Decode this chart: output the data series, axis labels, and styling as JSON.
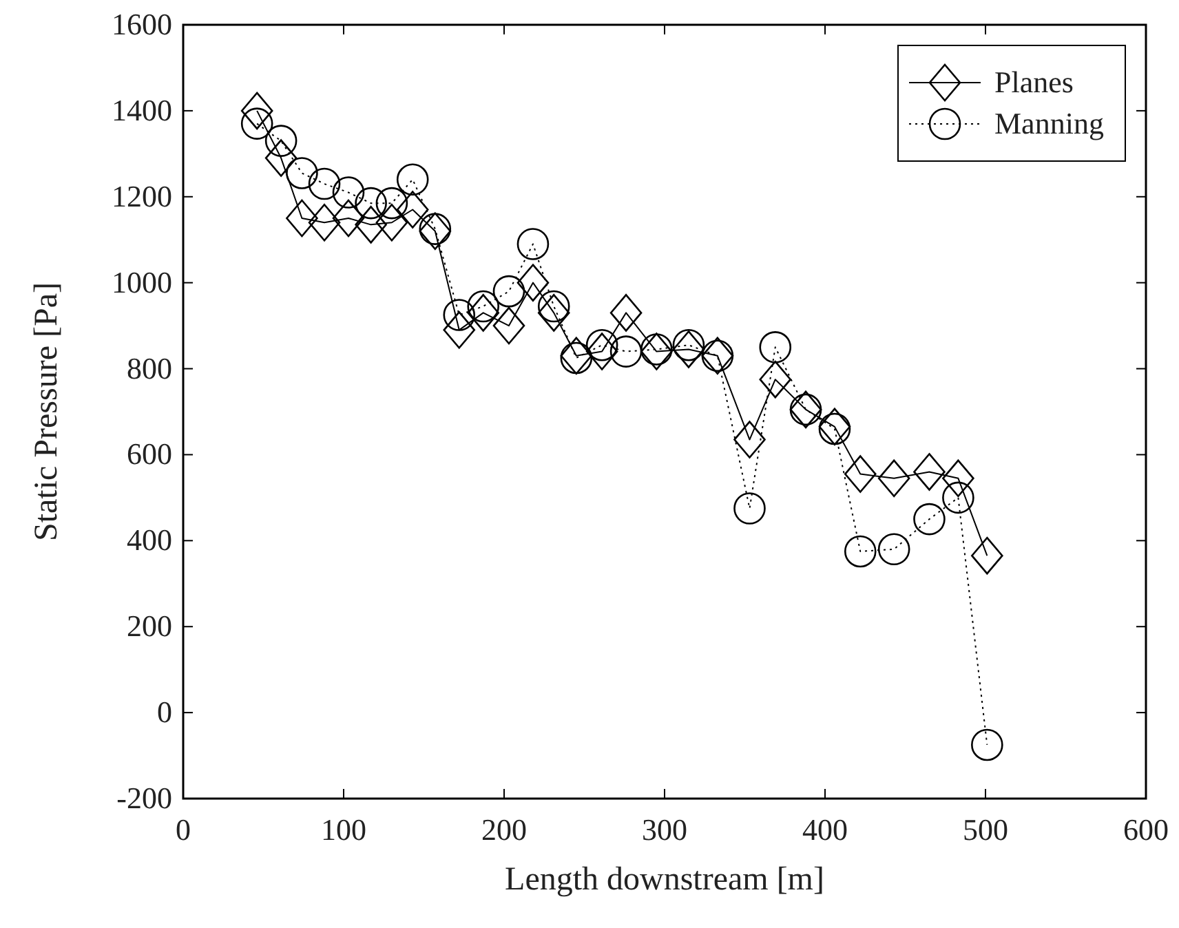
{
  "chart_data": {
    "type": "line",
    "xlabel": "Length downstream [m]",
    "ylabel": "Static Pressure [Pa]",
    "x": [
      46,
      61,
      74,
      88,
      103,
      117,
      130,
      143,
      157,
      172,
      187,
      203,
      218,
      231,
      245,
      261,
      276,
      295,
      315,
      333,
      353,
      369,
      388,
      406,
      422,
      443,
      465,
      483,
      501
    ],
    "xlim": [
      0,
      600
    ],
    "xticks": [
      0,
      100,
      200,
      300,
      400,
      500,
      600
    ],
    "ylim": [
      -200,
      1600
    ],
    "yticks": [
      -200,
      0,
      200,
      400,
      600,
      800,
      1000,
      1200,
      1400,
      1600
    ],
    "grid": false,
    "legend": "top right",
    "series": [
      {
        "name": "Planes",
        "color": "#000000",
        "marker": "diamond",
        "line_style": "solid",
        "values": [
          1400,
          1290,
          1150,
          1140,
          1150,
          1135,
          1140,
          1170,
          1120,
          890,
          930,
          900,
          1000,
          930,
          830,
          840,
          930,
          840,
          845,
          830,
          635,
          775,
          705,
          665,
          555,
          545,
          560,
          545,
          365
        ]
      },
      {
        "name": "Manning",
        "color": "#000000",
        "marker": "circle",
        "line_style": "dotted",
        "values": [
          1370,
          1330,
          1255,
          1230,
          1210,
          1185,
          1185,
          1240,
          1125,
          925,
          945,
          980,
          1090,
          945,
          825,
          855,
          840,
          845,
          855,
          830,
          475,
          850,
          705,
          660,
          375,
          380,
          450,
          500,
          -75
        ]
      }
    ]
  }
}
